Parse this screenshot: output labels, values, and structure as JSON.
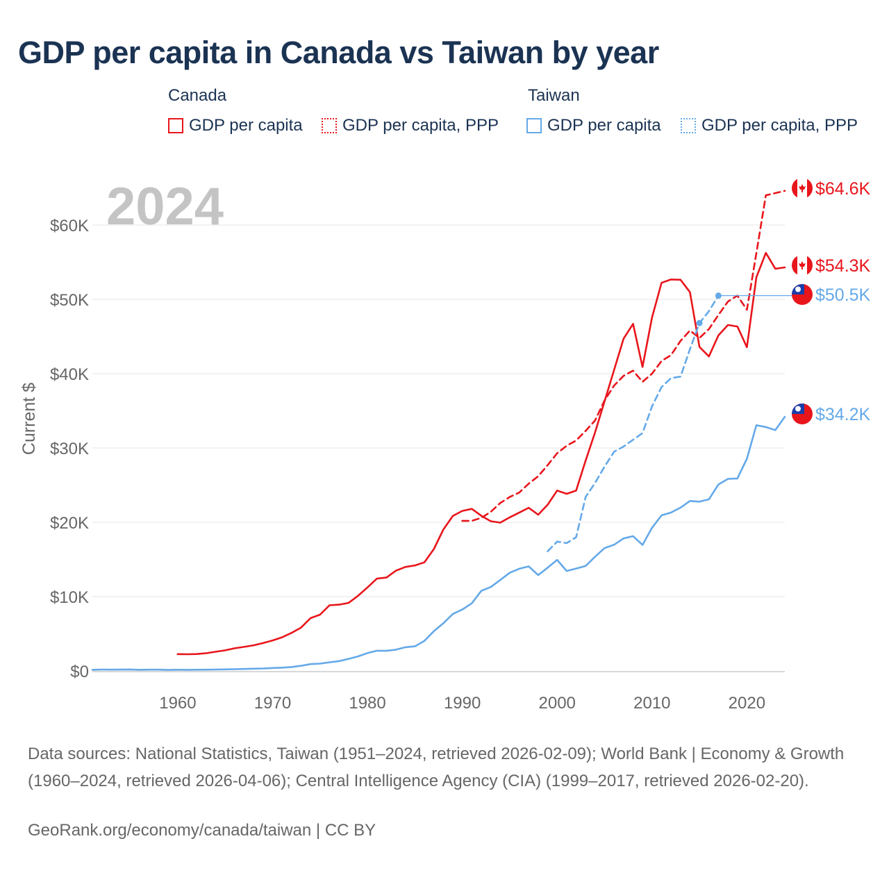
{
  "title": "GDP per capita in Canada vs Taiwan by year",
  "legend": {
    "canada_label": "Canada",
    "taiwan_label": "Taiwan",
    "items": [
      {
        "country": "Canada",
        "label": "GDP per capita",
        "style": "solid",
        "color": "#e8151b"
      },
      {
        "country": "Canada",
        "label": "GDP per capita, PPP",
        "style": "dotted",
        "color": "#e8151b"
      },
      {
        "country": "Taiwan",
        "label": "GDP per capita",
        "style": "solid",
        "color": "#64a9e8"
      },
      {
        "country": "Taiwan",
        "label": "GDP per capita, PPP",
        "style": "dotted",
        "color": "#64a9e8"
      }
    ]
  },
  "chart_data": {
    "type": "line",
    "year_label": "2024",
    "ylabel": "Current $",
    "xlim": [
      1951,
      2024
    ],
    "ylim": [
      0,
      60000
    ],
    "x_ticks": [
      1960,
      1970,
      1980,
      1990,
      2000,
      2010,
      2020
    ],
    "x_tick_labels": [
      "1960",
      "1970",
      "1980",
      "1990",
      "2000",
      "2010",
      "2020"
    ],
    "y_ticks": [
      0,
      10000,
      20000,
      30000,
      40000,
      50000,
      60000
    ],
    "y_tick_labels": [
      "$0",
      "$10K",
      "$20K",
      "$30K",
      "$40K",
      "$50K",
      "$60K"
    ],
    "colors": {
      "canada": "#e8151b",
      "taiwan": "#64a9e8",
      "grid": "#e6e6e6",
      "axis": "#666666"
    },
    "series": [
      {
        "name": "Canada GDP per capita",
        "country": "Canada",
        "style": "solid",
        "color": "#e8151b",
        "end_label": "$54.3K",
        "x": [
          1960,
          1961,
          1962,
          1963,
          1964,
          1965,
          1966,
          1967,
          1968,
          1969,
          1970,
          1971,
          1972,
          1973,
          1974,
          1975,
          1976,
          1977,
          1978,
          1979,
          1980,
          1981,
          1982,
          1983,
          1984,
          1985,
          1986,
          1987,
          1988,
          1989,
          1990,
          1991,
          1992,
          1993,
          1994,
          1995,
          1996,
          1997,
          1998,
          1999,
          2000,
          2001,
          2002,
          2003,
          2004,
          2005,
          2006,
          2007,
          2008,
          2009,
          2010,
          2011,
          2012,
          2013,
          2014,
          2015,
          2016,
          2017,
          2018,
          2019,
          2020,
          2021,
          2022,
          2023,
          2024
        ],
        "values": [
          2260,
          2240,
          2270,
          2380,
          2580,
          2770,
          3050,
          3230,
          3450,
          3750,
          4100,
          4520,
          5120,
          5830,
          7100,
          7570,
          8830,
          8920,
          9150,
          10100,
          11230,
          12420,
          12560,
          13490,
          13990,
          14200,
          14610,
          16400,
          19020,
          20850,
          21530,
          21800,
          20880,
          20140,
          19950,
          20660,
          21300,
          21950,
          21020,
          22370,
          24270,
          23830,
          24260,
          28300,
          32100,
          36300,
          40500,
          44700,
          46700,
          40900,
          47560,
          52220,
          52670,
          52640,
          50960,
          43600,
          42320,
          45150,
          46550,
          46350,
          43560,
          52960,
          56250,
          54120,
          54300
        ]
      },
      {
        "name": "Canada GDP per capita, PPP",
        "country": "Canada",
        "style": "dotted",
        "color": "#e8151b",
        "end_label": "$64.6K",
        "x": [
          1990,
          1991,
          1992,
          1993,
          1994,
          1995,
          1996,
          1997,
          1998,
          1999,
          2000,
          2001,
          2002,
          2003,
          2004,
          2005,
          2006,
          2007,
          2008,
          2009,
          2010,
          2011,
          2012,
          2013,
          2014,
          2015,
          2016,
          2017,
          2018,
          2019,
          2020,
          2021,
          2022,
          2023,
          2024
        ],
        "values": [
          20200,
          20200,
          20600,
          21400,
          22600,
          23400,
          24000,
          25200,
          26200,
          27700,
          29300,
          30300,
          31000,
          32300,
          33700,
          36400,
          38400,
          39700,
          40400,
          38900,
          40000,
          41700,
          42500,
          44400,
          45800,
          44800,
          46000,
          47900,
          49700,
          50500,
          48600,
          56200,
          64000,
          64300,
          64600
        ]
      },
      {
        "name": "Taiwan GDP per capita",
        "country": "Taiwan",
        "style": "solid",
        "color": "#64a9e8",
        "end_label": "$34.2K",
        "x": [
          1951,
          1952,
          1953,
          1954,
          1955,
          1956,
          1957,
          1958,
          1959,
          1960,
          1961,
          1962,
          1963,
          1964,
          1965,
          1966,
          1967,
          1968,
          1969,
          1970,
          1971,
          1972,
          1973,
          1974,
          1975,
          1976,
          1977,
          1978,
          1979,
          1980,
          1981,
          1982,
          1983,
          1984,
          1985,
          1986,
          1987,
          1988,
          1989,
          1990,
          1991,
          1992,
          1993,
          1994,
          1995,
          1996,
          1997,
          1998,
          1999,
          2000,
          2001,
          2002,
          2003,
          2004,
          2005,
          2006,
          2007,
          2008,
          2009,
          2010,
          2011,
          2012,
          2013,
          2014,
          2015,
          2016,
          2017,
          2018,
          2019,
          2020,
          2021,
          2022,
          2023,
          2024
        ],
        "values": [
          154,
          190,
          170,
          180,
          200,
          150,
          170,
          170,
          130,
          160,
          150,
          160,
          170,
          190,
          210,
          230,
          260,
          300,
          330,
          390,
          440,
          520,
          690,
          920,
          980,
          1160,
          1320,
          1620,
          1950,
          2400,
          2720,
          2700,
          2860,
          3190,
          3310,
          4040,
          5350,
          6410,
          7650,
          8260,
          9090,
          10780,
          11290,
          12230,
          13210,
          13750,
          14070,
          12900,
          13900,
          14940,
          13450,
          13780,
          14120,
          15360,
          16530,
          16980,
          17830,
          18130,
          16950,
          19260,
          20930,
          21310,
          21970,
          22870,
          22780,
          23090,
          25080,
          25840,
          25900,
          28550,
          33060,
          32810,
          32400,
          34200
        ]
      },
      {
        "name": "Taiwan GDP per capita, PPP",
        "country": "Taiwan",
        "style": "dotted",
        "color": "#64a9e8",
        "end_label": "$50.5K",
        "x": [
          1999,
          2000,
          2001,
          2002,
          2003,
          2004,
          2005,
          2006,
          2007,
          2008,
          2009,
          2010,
          2011,
          2012,
          2013,
          2014,
          2015,
          2016,
          2017
        ],
        "values": [
          16100,
          17400,
          17200,
          18000,
          23400,
          25300,
          27500,
          29500,
          30200,
          31100,
          32000,
          35600,
          38200,
          39400,
          39600,
          43300,
          46800,
          48400,
          50500
        ],
        "point_markers_at": [
          2015,
          2017
        ]
      }
    ]
  },
  "sources": {
    "text": "Data sources: National Statistics, Taiwan (1951–2024, retrieved 2026-02-09); World Bank | Economy & Growth (1960–2024, retrieved 2026-04-06); Central Intelligence Agency (CIA) (1999–2017, retrieved 2026-02-20).",
    "credit": "GeoRank.org/economy/canada/taiwan | CC BY"
  }
}
